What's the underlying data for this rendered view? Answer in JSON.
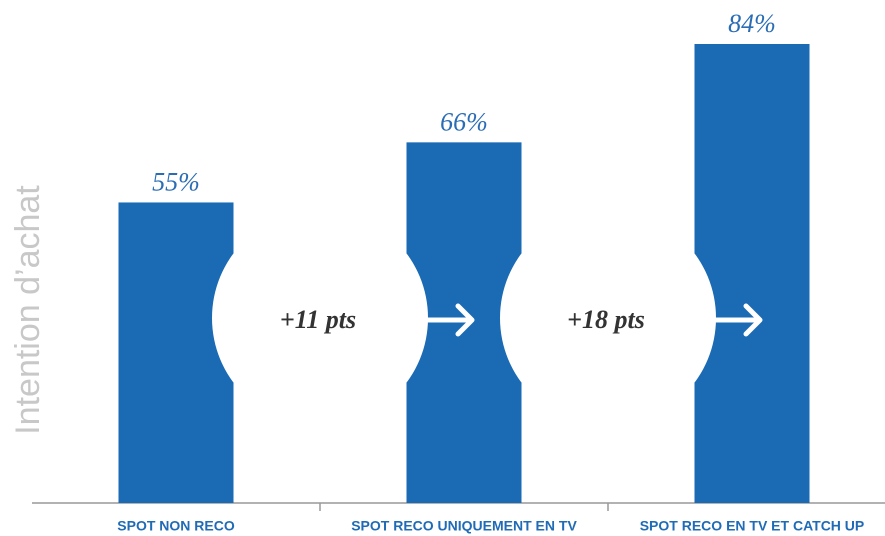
{
  "chart_data": {
    "type": "bar",
    "y_axis_label": "Intention d’achat",
    "categories": [
      "SPOT NON RECO",
      "SPOT RECO UNIQUEMENT EN TV",
      "SPOT RECO EN TV ET CATCH UP"
    ],
    "values": [
      55,
      66,
      84
    ],
    "value_labels": [
      "55%",
      "66%",
      "84%"
    ],
    "color": "#1a6ab4",
    "annotations": [
      "+11 pts",
      "+18 pts"
    ]
  }
}
